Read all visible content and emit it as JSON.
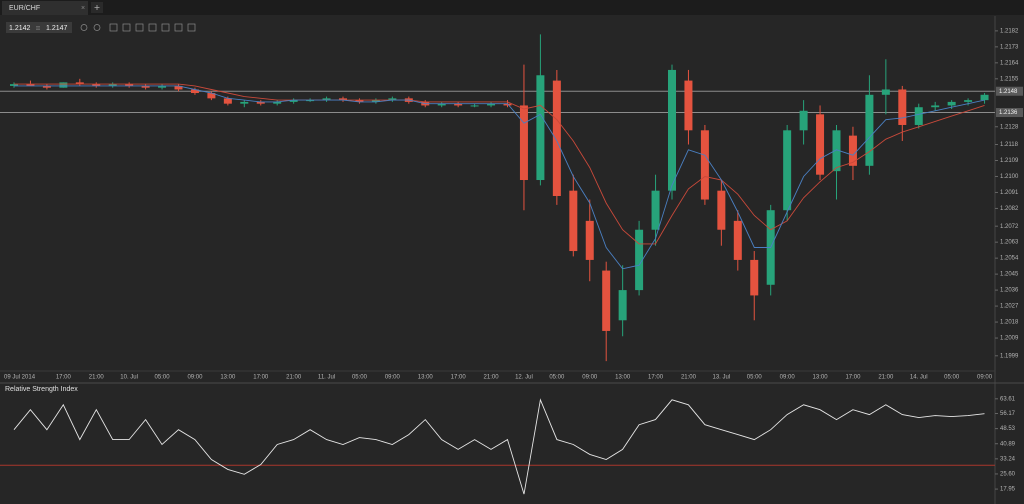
{
  "tab": {
    "title": "EUR/CHF"
  },
  "quote": {
    "bid": "1.2142",
    "ask": "1.2147"
  },
  "chart_data": [
    {
      "type": "candlestick",
      "categories": [
        "09 Jul 2014",
        null,
        null,
        "17:00",
        null,
        "21:00",
        null,
        "10. Jul",
        null,
        "05:00",
        null,
        "09:00",
        null,
        "13:00",
        null,
        "17:00",
        null,
        "21:00",
        null,
        "11. Jul",
        null,
        "05:00",
        null,
        "09:00",
        null,
        "13:00",
        null,
        "17:00",
        null,
        "21:00",
        null,
        "12. Jul",
        null,
        "05:00",
        null,
        "09:00",
        null,
        "13:00",
        null,
        "17:00",
        null,
        "21:00",
        null,
        "13. Jul",
        null,
        "05:00",
        null,
        "09:00",
        null,
        "13:00",
        null,
        "17:00",
        null,
        "21:00",
        null,
        "14. Jul",
        null,
        "05:00",
        null,
        "09:00"
      ],
      "open": [
        1.2151,
        1.2152,
        1.2151,
        1.215,
        1.2153,
        1.2152,
        1.2151,
        1.2152,
        1.2151,
        1.215,
        1.2151,
        1.2149,
        1.2147,
        1.2144,
        1.2141,
        1.2142,
        1.2141,
        1.2142,
        1.2143,
        1.2143,
        1.2144,
        1.2143,
        1.2142,
        1.2143,
        1.2144,
        1.2142,
        1.214,
        1.2141,
        1.214,
        1.214,
        1.2141,
        1.214,
        1.2098,
        1.2154,
        1.2092,
        1.2075,
        1.2047,
        1.2019,
        1.2036,
        1.207,
        1.2092,
        1.2154,
        1.2126,
        1.2092,
        1.2075,
        1.2053,
        1.2039,
        1.2081,
        1.2126,
        1.2135,
        1.2103,
        1.2123,
        1.2106,
        1.2146,
        1.2149,
        1.2129,
        1.2139,
        1.214,
        1.2142,
        1.2143
      ],
      "high": [
        1.2153,
        1.2154,
        1.2152,
        1.2153,
        1.2155,
        1.2153,
        1.2153,
        1.2153,
        1.2152,
        1.2152,
        1.2152,
        1.215,
        1.2148,
        1.2145,
        1.2143,
        1.2143,
        1.2143,
        1.2144,
        1.2144,
        1.2145,
        1.2145,
        1.2144,
        1.2144,
        1.2145,
        1.2145,
        1.2143,
        1.2142,
        1.2142,
        1.2141,
        1.2142,
        1.2143,
        1.2163,
        1.218,
        1.216,
        1.2101,
        1.2087,
        1.2052,
        1.205,
        1.2075,
        1.2101,
        1.2163,
        1.216,
        1.2129,
        1.2098,
        1.2081,
        1.2058,
        1.2084,
        1.2129,
        1.2143,
        1.214,
        1.2129,
        1.2128,
        1.2157,
        1.2166,
        1.2151,
        1.2141,
        1.2142,
        1.2143,
        1.2144,
        1.2147
      ],
      "low": [
        1.215,
        1.2151,
        1.2149,
        1.215,
        1.2151,
        1.215,
        1.215,
        1.215,
        1.2149,
        1.2149,
        1.2148,
        1.2146,
        1.2143,
        1.214,
        1.2139,
        1.214,
        1.214,
        1.2141,
        1.2142,
        1.2142,
        1.2142,
        1.2141,
        1.2141,
        1.2142,
        1.2141,
        1.2139,
        1.2139,
        1.2139,
        1.2139,
        1.2139,
        1.2139,
        1.2081,
        1.2095,
        1.2084,
        1.2055,
        1.2041,
        1.1996,
        1.201,
        1.2033,
        1.2061,
        1.2087,
        1.2118,
        1.2084,
        1.2061,
        1.2047,
        1.2019,
        1.2033,
        1.2075,
        1.2118,
        1.2098,
        1.2087,
        1.2098,
        1.2101,
        1.2135,
        1.212,
        1.2127,
        1.2137,
        1.2138,
        1.214,
        1.2141
      ],
      "close": [
        1.2152,
        1.2151,
        1.215,
        1.2153,
        1.2152,
        1.2151,
        1.2152,
        1.2151,
        1.215,
        1.2151,
        1.2149,
        1.2147,
        1.2144,
        1.2141,
        1.2142,
        1.2141,
        1.2142,
        1.2143,
        1.2143,
        1.2144,
        1.2143,
        1.2142,
        1.2143,
        1.2144,
        1.2142,
        1.214,
        1.2141,
        1.214,
        1.214,
        1.2141,
        1.214,
        1.2098,
        1.2157,
        1.2089,
        1.2058,
        1.2053,
        1.2013,
        1.2036,
        1.207,
        1.2092,
        1.216,
        1.2126,
        1.2087,
        1.207,
        1.2053,
        1.2033,
        1.2081,
        1.2126,
        1.2137,
        1.2101,
        1.2126,
        1.2106,
        1.2146,
        1.2149,
        1.2129,
        1.2139,
        1.214,
        1.2142,
        1.2143,
        1.2146
      ],
      "up_color": "#27a37a",
      "down_color": "#e4533f",
      "lines": [
        {
          "color": "#c8493a",
          "values": [
            1.2152,
            1.2152,
            1.2152,
            1.2152,
            1.2152,
            1.2152,
            1.2152,
            1.2152,
            1.2152,
            1.2152,
            1.2152,
            1.2151,
            1.2149,
            1.2147,
            1.2145,
            1.2144,
            1.2143,
            1.2143,
            1.2143,
            1.2143,
            1.2143,
            1.2143,
            1.2143,
            1.2143,
            1.2143,
            1.2142,
            1.2142,
            1.2142,
            1.2142,
            1.2142,
            1.2142,
            1.2138,
            1.214,
            1.2132,
            1.212,
            1.2105,
            1.2085,
            1.207,
            1.2062,
            1.2062,
            1.2078,
            1.2093,
            1.21,
            1.2098,
            1.209,
            1.2078,
            1.207,
            1.2075,
            1.2088,
            1.2097,
            1.2105,
            1.2108,
            1.2114,
            1.2121,
            1.2125,
            1.2128,
            1.2131,
            1.2134,
            1.2137,
            1.214
          ]
        },
        {
          "color": "#4a7fc1",
          "values": [
            1.2151,
            1.2151,
            1.2151,
            1.2151,
            1.2151,
            1.2151,
            1.2151,
            1.2151,
            1.2151,
            1.2151,
            1.2151,
            1.2149,
            1.2147,
            1.2144,
            1.2143,
            1.2142,
            1.2142,
            1.2143,
            1.2143,
            1.2143,
            1.2143,
            1.2142,
            1.2142,
            1.2143,
            1.2143,
            1.2141,
            1.2141,
            1.2141,
            1.2141,
            1.2141,
            1.2141,
            1.213,
            1.2135,
            1.212,
            1.21,
            1.2085,
            1.206,
            1.2048,
            1.205,
            1.2065,
            1.2095,
            1.2115,
            1.2112,
            1.2098,
            1.208,
            1.206,
            1.206,
            1.208,
            1.21,
            1.211,
            1.2115,
            1.2112,
            1.2122,
            1.2132,
            1.2133,
            1.2135,
            1.2137,
            1.2139,
            1.2141,
            1.2143
          ]
        }
      ],
      "levels": [
        1.2148,
        1.2136
      ],
      "level_color": "#8c8c8c",
      "ylim": [
        1.1991,
        1.2187
      ],
      "yticks": [
        1.2182,
        1.2173,
        1.2164,
        1.2155,
        1.2128,
        1.2118,
        1.2109,
        {
          "value": 1.21,
          "label": "1.2100"
        },
        1.2091,
        1.2082,
        1.2072,
        1.2063,
        1.2054,
        1.2045,
        1.2036,
        1.2027,
        1.2018,
        1.2009,
        1.1999
      ]
    },
    {
      "type": "line",
      "title": "Relative Strength Index",
      "values": [
        48.0,
        58.1,
        48.0,
        60.6,
        43.0,
        58.1,
        43.0,
        43.0,
        53.1,
        40.5,
        48.0,
        43.0,
        32.9,
        27.9,
        25.4,
        30.4,
        40.5,
        43.0,
        48.0,
        43.0,
        40.5,
        44.0,
        43.0,
        40.5,
        45.5,
        53.1,
        43.0,
        38.0,
        43.0,
        38.0,
        43.0,
        15.4,
        63.1,
        43.0,
        40.5,
        35.5,
        32.9,
        38.0,
        50.5,
        53.1,
        63.1,
        60.6,
        50.5,
        48.0,
        45.5,
        43.0,
        48.0,
        55.6,
        60.6,
        58.1,
        53.1,
        58.1,
        55.6,
        60.6,
        55.6,
        54.1,
        55.1,
        54.6,
        55.1,
        56.1
      ],
      "color": "#e6e6e6",
      "levels": [
        30
      ],
      "level_color": "#a8362b",
      "ylim": [
        10.4,
        71.1
      ],
      "yticks": [
        63.61,
        56.17,
        48.53,
        40.89,
        33.24,
        {
          "value": 25.6,
          "label": "25.60"
        },
        17.95
      ]
    }
  ]
}
